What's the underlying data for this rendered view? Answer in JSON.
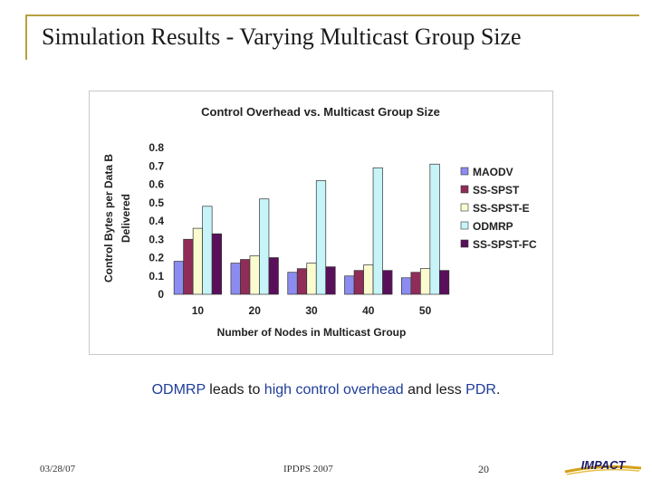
{
  "slide": {
    "title": "Simulation Results - Varying Multicast Group Size",
    "caption_parts": [
      {
        "text": "ODMRP",
        "highlight": true
      },
      {
        "text": " leads to ",
        "highlight": false
      },
      {
        "text": "high control overhead",
        "highlight": true
      },
      {
        "text": " and less ",
        "highlight": false
      },
      {
        "text": "PDR",
        "highlight": true
      },
      {
        "text": ".",
        "highlight": false
      }
    ],
    "footer": {
      "date": "03/28/07",
      "conference": "IPDPS 2007",
      "page": "20"
    },
    "logo_text": "IMPACT"
  },
  "chart_data": {
    "type": "bar",
    "title": "Control Overhead vs. Multicast Group Size",
    "xlabel": "Number of Nodes in Multicast Group",
    "ylabel": "Control Bytes per Data B Delivered",
    "ylabel_lines": [
      "Control Bytes per Data B",
      "Delivered"
    ],
    "categories": [
      "10",
      "20",
      "30",
      "40",
      "50"
    ],
    "ylim": [
      0,
      0.8
    ],
    "yticks": [
      "0",
      "0.1",
      "0.2",
      "0.3",
      "0.4",
      "0.5",
      "0.6",
      "0.7",
      "0.8"
    ],
    "grid": false,
    "legend_position": "right",
    "series": [
      {
        "name": "MAODV",
        "color": "#8c8cf0",
        "values": [
          0.18,
          0.17,
          0.12,
          0.1,
          0.09
        ]
      },
      {
        "name": "SS-SPST",
        "color": "#8f2d58",
        "values": [
          0.3,
          0.19,
          0.14,
          0.13,
          0.12
        ]
      },
      {
        "name": "SS-SPST-E",
        "color": "#fbfbd0",
        "values": [
          0.36,
          0.21,
          0.17,
          0.16,
          0.14
        ]
      },
      {
        "name": "ODMRP",
        "color": "#c6f4f8",
        "values": [
          0.48,
          0.52,
          0.62,
          0.69,
          0.71
        ]
      },
      {
        "name": "SS-SPST-FC",
        "color": "#5a0f5a",
        "values": [
          0.33,
          0.2,
          0.15,
          0.13,
          0.13
        ]
      }
    ]
  }
}
